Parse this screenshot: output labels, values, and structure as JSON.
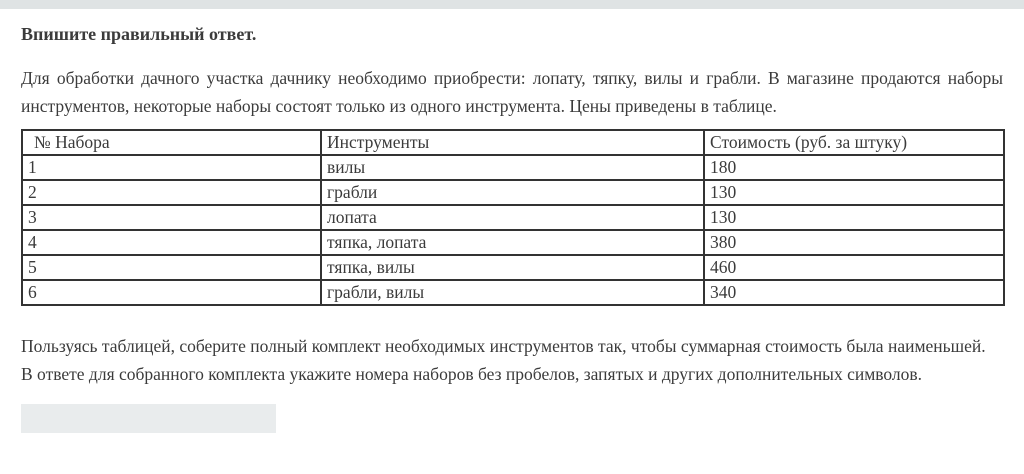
{
  "question": {
    "heading": "Впишите правильный ответ.",
    "intro": "Для обработки дачного участка дачнику необходимо приобрести: лопату, тяпку, вилы и грабли. В магазине продаются наборы инструментов, некоторые наборы состоят только из одного инструмента. Цены приведены в таблице.",
    "task": "Пользуясь таблицей, соберите полный комплект необходимых инструментов так, чтобы суммарная стоимость была наименьшей.",
    "answer_format": "В ответе для собранного комплекта укажите номера наборов без пробелов, запятых и других дополнительных символов."
  },
  "table": {
    "headers": [
      "№ Набора",
      "Инструменты",
      "Стоимость (руб. за штуку)"
    ],
    "rows": [
      {
        "number": "1",
        "tools": "вилы",
        "price": "180"
      },
      {
        "number": "2",
        "tools": "грабли",
        "price": "130"
      },
      {
        "number": "3",
        "tools": "лопата",
        "price": "130"
      },
      {
        "number": "4",
        "tools": "тяпка, лопата",
        "price": "380"
      },
      {
        "number": "5",
        "tools": "тяпка, вилы",
        "price": "460"
      },
      {
        "number": "6",
        "tools": "грабли, вилы",
        "price": "340"
      }
    ]
  },
  "answer_input": {
    "value": ""
  },
  "colors": {
    "text": "#3b3b3b",
    "table_border": "#333333",
    "top_bar": "#dfe3e4",
    "input_background": "#e9eced",
    "page_background": "#ffffff"
  }
}
